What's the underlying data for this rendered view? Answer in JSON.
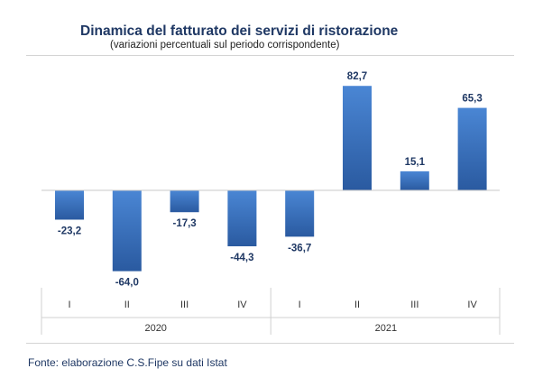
{
  "title": "Dinamica del fatturato dei servizi di ristorazione",
  "subtitle": "(variazioni percentuali sul periodo corrispondente)",
  "source": "Fonte: elaborazione C.S.Fipe su dati Istat",
  "colors": {
    "bar_top": "#4a86d4",
    "bar_bottom": "#2a5aa0",
    "title": "#1f3864",
    "label": "#1f3864"
  },
  "chart_data": {
    "type": "bar",
    "categories": [
      "I",
      "II",
      "III",
      "IV",
      "I",
      "II",
      "III",
      "IV"
    ],
    "groups": [
      {
        "label": "2020",
        "categories": [
          "I",
          "II",
          "III",
          "IV"
        ]
      },
      {
        "label": "2021",
        "categories": [
          "I",
          "II",
          "III",
          "IV"
        ]
      }
    ],
    "values": [
      -23.2,
      -64.0,
      -17.3,
      -44.3,
      -36.7,
      82.7,
      15.1,
      65.3
    ],
    "data_labels": [
      "-23,2",
      "-64,0",
      "-17,3",
      "-44,3",
      "-36,7",
      "82,7",
      "15,1",
      "65,3"
    ],
    "title": "Dinamica del fatturato dei servizi di ristorazione",
    "subtitle": "(variazioni percentuali sul periodo corrispondente)",
    "xlabel": "",
    "ylabel": "",
    "ylim": [
      -70,
      90
    ],
    "grid": false,
    "legend": "none"
  }
}
